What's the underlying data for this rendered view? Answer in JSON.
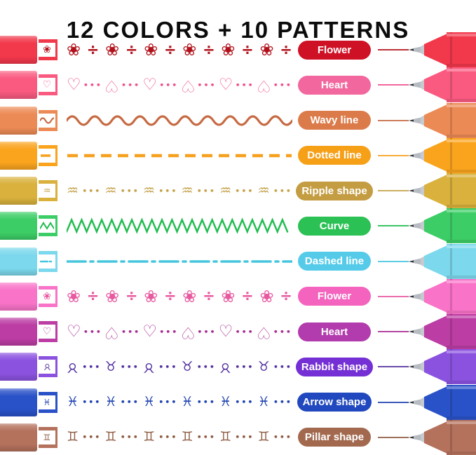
{
  "title": "12 COLORS + 10 PATTERNS",
  "tip_hardware": {
    "needle_point": "#2F3237",
    "needle_metal": "#B7BCC3",
    "collar": "#C6CACF"
  },
  "rows": [
    {
      "label": "Flower",
      "pattern_type": "flower",
      "glyphs": [
        "❀",
        "÷"
      ],
      "icon": "flower-stamp-icon",
      "colors": {
        "body": "#F2384B",
        "badge": "#CF1125",
        "ink": "#B2121B"
      }
    },
    {
      "label": "Heart",
      "pattern_type": "heart",
      "glyphs": [
        "♡",
        "•••"
      ],
      "icon": "heart-stamp-icon",
      "colors": {
        "body": "#FA5A80",
        "badge": "#F2679E",
        "ink": "#F0518D"
      }
    },
    {
      "label": "Wavy line",
      "pattern_type": "wavy",
      "glyphs": [],
      "icon": "wavy-line-stamp-icon",
      "colors": {
        "body": "#EC8A55",
        "badge": "#DC7B4A",
        "ink": "#C66A42"
      }
    },
    {
      "label": "Dotted line",
      "pattern_type": "dash",
      "glyphs": [],
      "icon": "dotted-line-stamp-icon",
      "colors": {
        "body": "#FAA41E",
        "badge": "#F6A018",
        "ink": "#F7A01B"
      }
    },
    {
      "label": "Ripple shape",
      "pattern_type": "ripple",
      "glyphs": [
        "♒",
        "•••"
      ],
      "icon": "ripple-stamp-icon",
      "colors": {
        "body": "#D9B13C",
        "badge": "#C49C41",
        "ink": "#C5A24A"
      }
    },
    {
      "label": "Curve",
      "pattern_type": "zigzag",
      "glyphs": [],
      "icon": "zigzag-stamp-icon",
      "colors": {
        "body": "#3DCD66",
        "badge": "#2BC155",
        "ink": "#1FBC4F"
      }
    },
    {
      "label": "Dashed line",
      "pattern_type": "dashdot",
      "glyphs": [],
      "icon": "dash-dot-stamp-icon",
      "colors": {
        "body": "#7CD8EC",
        "badge": "#55CBE9",
        "ink": "#45C5DE"
      }
    },
    {
      "label": "Flower",
      "pattern_type": "flower",
      "glyphs": [
        "❀",
        "÷"
      ],
      "icon": "flower-stamp-icon",
      "colors": {
        "body": "#F973C8",
        "badge": "#F463BE",
        "ink": "#E85AA0"
      }
    },
    {
      "label": "Heart",
      "pattern_type": "heart",
      "glyphs": [
        "♡",
        "•••"
      ],
      "icon": "heart-stamp-icon",
      "colors": {
        "body": "#BC3DA4",
        "badge": "#B23BAD",
        "ink": "#A82C93"
      }
    },
    {
      "label": "Rabbit shape",
      "pattern_type": "rabbit",
      "glyphs": [
        "♉",
        "•••"
      ],
      "icon": "rabbit-stamp-icon",
      "colors": {
        "body": "#8B52DF",
        "badge": "#7430D4",
        "ink": "#52309F"
      }
    },
    {
      "label": "Arrow shape",
      "pattern_type": "arrow",
      "glyphs": [
        "♓",
        "•••"
      ],
      "icon": "arrow-stamp-icon",
      "colors": {
        "body": "#2A52C8",
        "badge": "#2148BE",
        "ink": "#1E41B0"
      }
    },
    {
      "label": "Pillar shape",
      "pattern_type": "pillar",
      "glyphs": [
        "♊",
        "•••"
      ],
      "icon": "pillar-stamp-icon",
      "colors": {
        "body": "#B4715C",
        "badge": "#A2694F",
        "ink": "#8F5B42"
      }
    }
  ]
}
